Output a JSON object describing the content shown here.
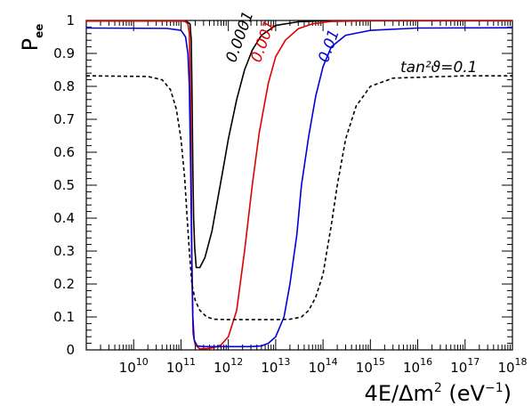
{
  "chart_data": {
    "type": "line",
    "xscale": "log",
    "xlim": [
      1000000000.0,
      1e+18
    ],
    "ylim": [
      0,
      1
    ],
    "grid": false,
    "xlabel": {
      "main": "4E/Δm",
      "sup1": "2",
      "mid": " (eV",
      "sup2": "−1",
      "end": ")"
    },
    "ylabel": {
      "main": "P",
      "sub": "ee"
    },
    "x_ticks": [
      {
        "value": 10000000000.0,
        "base": "10",
        "exp": "10"
      },
      {
        "value": 100000000000.0,
        "base": "10",
        "exp": "11"
      },
      {
        "value": 1000000000000.0,
        "base": "10",
        "exp": "12"
      },
      {
        "value": 10000000000000.0,
        "base": "10",
        "exp": "13"
      },
      {
        "value": 100000000000000.0,
        "base": "10",
        "exp": "14"
      },
      {
        "value": 1000000000000000.0,
        "base": "10",
        "exp": "15"
      },
      {
        "value": 1e+16,
        "base": "10",
        "exp": "16"
      },
      {
        "value": 1e+17,
        "base": "10",
        "exp": "17"
      },
      {
        "value": 1e+18,
        "base": "10",
        "exp": "18"
      }
    ],
    "y_ticks": [
      "0",
      "0.1",
      "0.2",
      "0.3",
      "0.4",
      "0.5",
      "0.6",
      "0.7",
      "0.8",
      "0.9",
      "1"
    ],
    "annotation": {
      "text": "tan²ϑ=0.1"
    },
    "series": [
      {
        "name": "0.0001",
        "color": "#000000",
        "dash": "solid",
        "points": [
          [
            1000000000.0,
            0.998
          ],
          [
            100000000000.0,
            0.998
          ],
          [
            130000000000.0,
            0.997
          ],
          [
            155000000000.0,
            0.99
          ],
          [
            165000000000.0,
            0.94
          ],
          [
            172000000000.0,
            0.75
          ],
          [
            178000000000.0,
            0.55
          ],
          [
            185000000000.0,
            0.4
          ],
          [
            195000000000.0,
            0.31
          ],
          [
            210000000000.0,
            0.25
          ],
          [
            250000000000.0,
            0.25
          ],
          [
            320000000000.0,
            0.28
          ],
          [
            450000000000.0,
            0.36
          ],
          [
            600000000000.0,
            0.46
          ],
          [
            800000000000.0,
            0.56
          ],
          [
            1000000000000.0,
            0.64
          ],
          [
            1500000000000.0,
            0.76
          ],
          [
            2200000000000.0,
            0.85
          ],
          [
            3200000000000.0,
            0.91
          ],
          [
            5000000000000.0,
            0.955
          ],
          [
            10000000000000.0,
            0.985
          ],
          [
            30000000000000.0,
            0.996
          ],
          [
            100000000000000.0,
            0.999
          ],
          [
            1e+18,
            0.999
          ]
        ]
      },
      {
        "name": "0.001",
        "color": "#e00000",
        "dash": "solid",
        "points": [
          [
            1000000000.0,
            0.998
          ],
          [
            120000000000.0,
            0.998
          ],
          [
            140000000000.0,
            0.99
          ],
          [
            150000000000.0,
            0.96
          ],
          [
            158000000000.0,
            0.8
          ],
          [
            165000000000.0,
            0.5
          ],
          [
            172000000000.0,
            0.2
          ],
          [
            180000000000.0,
            0.05
          ],
          [
            200000000000.0,
            0.015
          ],
          [
            250000000000.0,
            0.003
          ],
          [
            350000000000.0,
            0.004
          ],
          [
            500000000000.0,
            0.007
          ],
          [
            700000000000.0,
            0.015
          ],
          [
            1000000000000.0,
            0.04
          ],
          [
            1500000000000.0,
            0.12
          ],
          [
            2200000000000.0,
            0.3
          ],
          [
            3200000000000.0,
            0.5
          ],
          [
            4500000000000.0,
            0.66
          ],
          [
            7000000000000.0,
            0.81
          ],
          [
            10000000000000.0,
            0.89
          ],
          [
            16000000000000.0,
            0.94
          ],
          [
            30000000000000.0,
            0.975
          ],
          [
            60000000000000.0,
            0.99
          ],
          [
            150000000000000.0,
            0.997
          ],
          [
            1000000000000000.0,
            0.999
          ],
          [
            1e+18,
            0.999
          ]
        ]
      },
      {
        "name": "0.01",
        "color": "#0000dd",
        "dash": "solid",
        "points": [
          [
            1000000000.0,
            0.977
          ],
          [
            50000000000.0,
            0.976
          ],
          [
            100000000000.0,
            0.97
          ],
          [
            125000000000.0,
            0.95
          ],
          [
            140000000000.0,
            0.9
          ],
          [
            150000000000.0,
            0.8
          ],
          [
            160000000000.0,
            0.55
          ],
          [
            168000000000.0,
            0.3
          ],
          [
            178000000000.0,
            0.1
          ],
          [
            190000000000.0,
            0.03
          ],
          [
            220000000000.0,
            0.012
          ],
          [
            300000000000.0,
            0.01
          ],
          [
            1000000000000.0,
            0.01
          ],
          [
            3000000000000.0,
            0.01
          ],
          [
            5000000000000.0,
            0.012
          ],
          [
            7000000000000.0,
            0.02
          ],
          [
            10000000000000.0,
            0.04
          ],
          [
            15000000000000.0,
            0.1
          ],
          [
            20000000000000.0,
            0.2
          ],
          [
            28000000000000.0,
            0.35
          ],
          [
            35000000000000.0,
            0.5
          ],
          [
            50000000000000.0,
            0.65
          ],
          [
            70000000000000.0,
            0.77
          ],
          [
            100000000000000.0,
            0.86
          ],
          [
            150000000000000.0,
            0.92
          ],
          [
            300000000000000.0,
            0.955
          ],
          [
            1000000000000000.0,
            0.97
          ],
          [
            1e+16,
            0.977
          ],
          [
            1e+18,
            0.978
          ]
        ]
      },
      {
        "name": "tan²ϑ=0.1",
        "color": "#000000",
        "dash": "dashed",
        "points": [
          [
            1000000000.0,
            0.832
          ],
          [
            20000000000.0,
            0.83
          ],
          [
            40000000000.0,
            0.82
          ],
          [
            60000000000.0,
            0.79
          ],
          [
            80000000000.0,
            0.73
          ],
          [
            100000000000.0,
            0.64
          ],
          [
            120000000000.0,
            0.52
          ],
          [
            135000000000.0,
            0.4
          ],
          [
            150000000000.0,
            0.3
          ],
          [
            170000000000.0,
            0.2
          ],
          [
            200000000000.0,
            0.15
          ],
          [
            250000000000.0,
            0.12
          ],
          [
            350000000000.0,
            0.1
          ],
          [
            500000000000.0,
            0.093
          ],
          [
            1000000000000.0,
            0.092
          ],
          [
            10000000000000.0,
            0.092
          ],
          [
            20000000000000.0,
            0.093
          ],
          [
            35000000000000.0,
            0.1
          ],
          [
            50000000000000.0,
            0.12
          ],
          [
            70000000000000.0,
            0.16
          ],
          [
            100000000000000.0,
            0.23
          ],
          [
            150000000000000.0,
            0.38
          ],
          [
            200000000000000.0,
            0.5
          ],
          [
            300000000000000.0,
            0.64
          ],
          [
            500000000000000.0,
            0.74
          ],
          [
            1000000000000000.0,
            0.8
          ],
          [
            3000000000000000.0,
            0.825
          ],
          [
            1e+17,
            0.832
          ],
          [
            1e+18,
            0.832
          ]
        ]
      }
    ],
    "curve_labels": [
      {
        "text": "0.0001",
        "color": "#000000",
        "x": 1400000000000.0,
        "y": 0.87,
        "angle": -70
      },
      {
        "text": "0.001",
        "color": "#e00000",
        "x": 4700000000000.0,
        "y": 0.87,
        "angle": -70
      },
      {
        "text": "0.01",
        "color": "#0000dd",
        "x": 125000000000000.0,
        "y": 0.87,
        "angle": -70
      }
    ]
  }
}
